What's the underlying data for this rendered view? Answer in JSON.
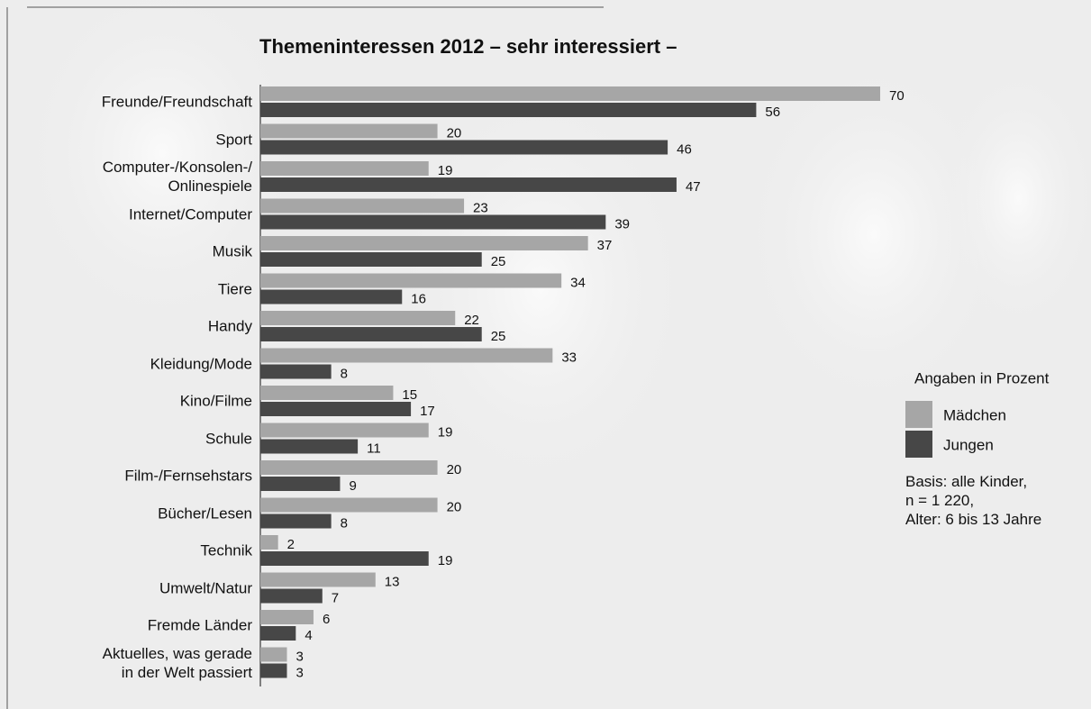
{
  "chart_data": {
    "type": "bar",
    "horizontal": true,
    "title": "Themeninteressen 2012 – sehr interessiert –",
    "legend_title": "Angaben in Prozent",
    "note": "Basis: alle Kinder,\nn = 1 220,\nAlter: 6 bis 13 Jahre",
    "categories": [
      "Freunde/Freundschaft",
      "Sport",
      "Computer-/Konsolen-/\nOnlinespiele",
      "Internet/Computer",
      "Musik",
      "Tiere",
      "Handy",
      "Kleidung/Mode",
      "Kino/Filme",
      "Schule",
      "Film-/Fernsehstars",
      "Bücher/Lesen",
      "Technik",
      "Umwelt/Natur",
      "Fremde Länder",
      "Aktuelles, was gerade\nin der Welt passiert"
    ],
    "series": [
      {
        "name": "Mädchen",
        "color": "#a6a6a6",
        "values": [
          70,
          20,
          19,
          23,
          37,
          34,
          22,
          33,
          15,
          19,
          20,
          20,
          2,
          13,
          6,
          3
        ]
      },
      {
        "name": "Jungen",
        "color": "#474747",
        "values": [
          56,
          46,
          47,
          39,
          25,
          16,
          25,
          8,
          17,
          11,
          9,
          8,
          19,
          7,
          4,
          3
        ]
      }
    ]
  }
}
